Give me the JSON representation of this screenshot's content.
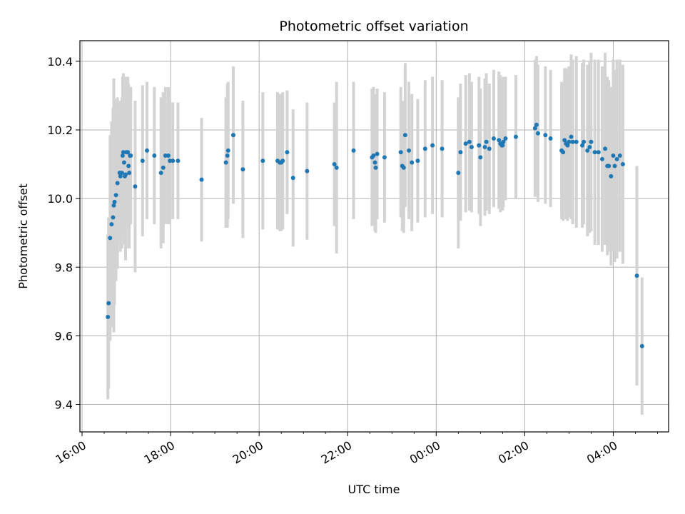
{
  "chart_data": {
    "type": "scatter",
    "title": "Photometric offset variation",
    "xlabel": "UTC time",
    "ylabel": "Photometric offset",
    "grid": true,
    "legend": "none",
    "x_ticks": [
      "16:00",
      "18:00",
      "20:00",
      "22:00",
      "00:00",
      "02:00",
      "04:00"
    ],
    "y_ticks": [
      "9.4",
      "9.6",
      "9.8",
      "10.0",
      "10.2",
      "10.4"
    ],
    "xlim": [
      "16:00",
      "05:15"
    ],
    "ylim": [
      9.32,
      10.46
    ],
    "point_color": "#1f77b4",
    "errorbar_color": "#d3d3d3",
    "series": [
      {
        "x": [
          "16:35",
          "16:36",
          "16:38",
          "16:40",
          "16:42",
          "16:43",
          "16:44",
          "16:46",
          "16:48",
          "16:51",
          "16:52",
          "16:54",
          "16:55",
          "16:56",
          "16:57",
          "16:58",
          "16:59",
          "17:00",
          "17:02",
          "17:03",
          "17:04",
          "17:05",
          "17:06",
          "17:12",
          "17:22",
          "17:28",
          "17:38",
          "17:47",
          "17:50",
          "17:53",
          "17:57",
          "17:59",
          "18:03",
          "18:10",
          "18:42",
          "19:15",
          "19:17",
          "19:18",
          "19:25",
          "19:38",
          "20:05",
          "20:25",
          "20:28",
          "20:30",
          "20:32",
          "20:38",
          "20:46",
          "21:05",
          "21:42",
          "21:45",
          "22:08",
          "22:33",
          "22:35",
          "22:37",
          "22:38",
          "22:40",
          "22:50",
          "23:12",
          "23:14",
          "23:16",
          "23:18",
          "23:23",
          "23:27",
          "23:35",
          "23:45",
          "23:55",
          "00:08",
          "00:30",
          "00:33",
          "00:40",
          "00:45",
          "00:48",
          "00:58",
          "01:00",
          "01:06",
          "01:08",
          "01:12",
          "01:18",
          "01:25",
          "01:27",
          "01:29",
          "01:30",
          "01:31",
          "01:34",
          "01:48",
          "02:14",
          "02:16",
          "02:18",
          "02:28",
          "02:35",
          "02:50",
          "02:52",
          "02:54",
          "02:56",
          "02:58",
          "03:00",
          "03:03",
          "03:05",
          "03:10",
          "03:18",
          "03:20",
          "03:25",
          "03:28",
          "03:30",
          "03:35",
          "03:40",
          "03:45",
          "03:49",
          "03:52",
          "03:54",
          "03:57",
          "04:00",
          "04:02",
          "04:05",
          "04:09",
          "04:13",
          "04:32",
          "04:39"
        ],
        "y": [
          9.655,
          9.695,
          9.885,
          9.925,
          9.945,
          9.98,
          9.99,
          10.01,
          10.045,
          10.075,
          10.065,
          10.075,
          10.125,
          10.135,
          10.105,
          10.065,
          10.07,
          10.135,
          10.135,
          10.095,
          10.075,
          10.125,
          10.125,
          10.035,
          10.11,
          10.14,
          10.125,
          10.075,
          10.09,
          10.125,
          10.125,
          10.11,
          10.11,
          10.11,
          10.055,
          10.105,
          10.125,
          10.14,
          10.185,
          10.085,
          10.11,
          10.11,
          10.105,
          10.105,
          10.11,
          10.135,
          10.06,
          10.08,
          10.1,
          10.09,
          10.14,
          10.12,
          10.125,
          10.105,
          10.09,
          10.13,
          10.12,
          10.135,
          10.095,
          10.09,
          10.185,
          10.14,
          10.105,
          10.11,
          10.145,
          10.155,
          10.145,
          10.075,
          10.135,
          10.16,
          10.165,
          10.15,
          10.155,
          10.12,
          10.15,
          10.165,
          10.145,
          10.175,
          10.17,
          10.16,
          10.155,
          10.155,
          10.165,
          10.175,
          10.18,
          10.205,
          10.215,
          10.19,
          10.185,
          10.175,
          10.14,
          10.135,
          10.17,
          10.16,
          10.155,
          10.165,
          10.18,
          10.165,
          10.165,
          10.155,
          10.165,
          10.14,
          10.15,
          10.165,
          10.135,
          10.135,
          10.115,
          10.145,
          10.095,
          10.095,
          10.065,
          10.125,
          10.095,
          10.115,
          10.125,
          10.1,
          9.775,
          9.57
        ],
        "err": [
          0.24,
          0.25,
          0.3,
          0.3,
          0.32,
          0.37,
          0.3,
          0.25,
          0.25,
          0.2,
          0.22,
          0.22,
          0.23,
          0.23,
          0.22,
          0.2,
          0.25,
          0.22,
          0.22,
          0.24,
          0.22,
          0.2,
          0.2,
          0.25,
          0.22,
          0.2,
          0.2,
          0.22,
          0.22,
          0.2,
          0.2,
          0.18,
          0.17,
          0.17,
          0.18,
          0.19,
          0.21,
          0.2,
          0.2,
          0.2,
          0.2,
          0.2,
          0.2,
          0.2,
          0.2,
          0.18,
          0.2,
          0.2,
          0.18,
          0.25,
          0.2,
          0.2,
          0.2,
          0.2,
          0.19,
          0.19,
          0.19,
          0.19,
          0.19,
          0.19,
          0.21,
          0.2,
          0.2,
          0.18,
          0.2,
          0.2,
          0.2,
          0.22,
          0.2,
          0.2,
          0.2,
          0.19,
          0.2,
          0.2,
          0.2,
          0.2,
          0.19,
          0.2,
          0.2,
          0.2,
          0.19,
          0.19,
          0.19,
          0.18,
          0.18,
          0.2,
          0.2,
          0.2,
          0.2,
          0.2,
          0.2,
          0.2,
          0.21,
          0.22,
          0.22,
          0.22,
          0.24,
          0.24,
          0.25,
          0.24,
          0.24,
          0.25,
          0.25,
          0.26,
          0.27,
          0.27,
          0.27,
          0.28,
          0.26,
          0.25,
          0.26,
          0.28,
          0.28,
          0.29,
          0.28,
          0.29,
          0.32,
          0.2
        ]
      }
    ]
  }
}
